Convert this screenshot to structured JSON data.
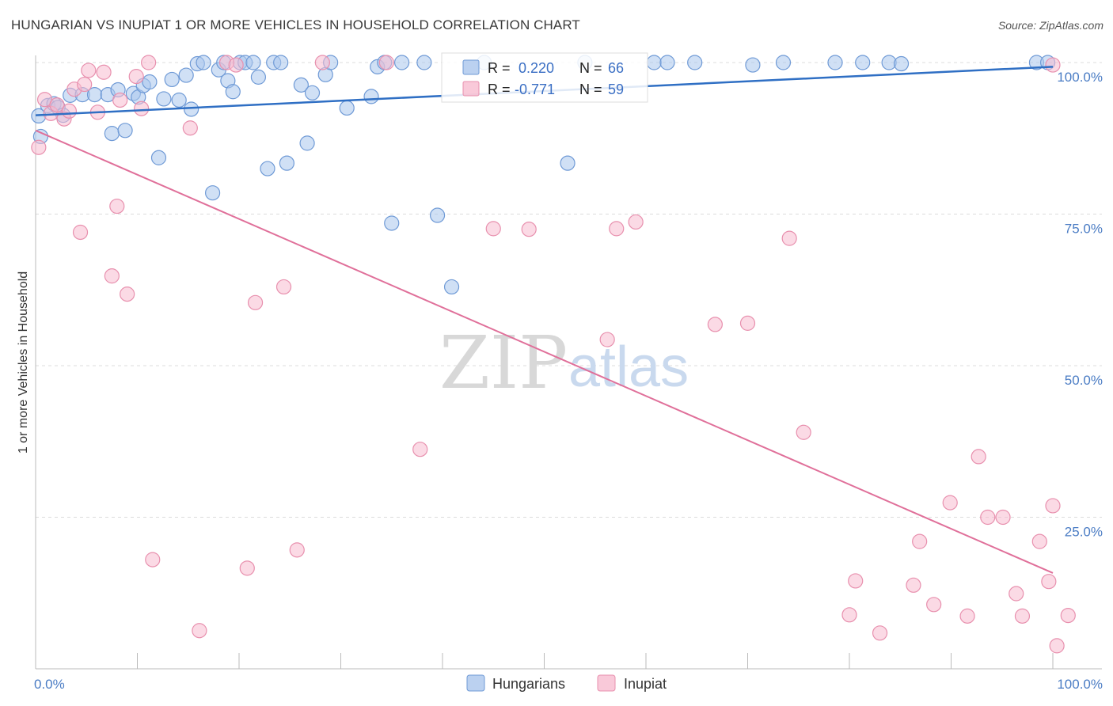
{
  "header": {
    "title": "HUNGARIAN VS INUPIAT 1 OR MORE VEHICLES IN HOUSEHOLD CORRELATION CHART",
    "source": "Source: ZipAtlas.com"
  },
  "watermark": {
    "zip": "ZIP",
    "atlas": "atlas"
  },
  "legend": {
    "r_label": "R =",
    "n_label": "N =",
    "hungarians": {
      "r": "0.220",
      "n": "66"
    },
    "inupiat": {
      "r": "-0.771",
      "n": "59"
    }
  },
  "colors": {
    "hungarians_fill": "#aac6ec",
    "hungarians_stroke": "#6f9ad6",
    "hungarians_line": "#2f6fc4",
    "inupiat_fill": "#f7bcd0",
    "inupiat_stroke": "#e890ae",
    "inupiat_line": "#e0709a"
  },
  "chart_data": {
    "type": "scatter",
    "title": "HUNGARIAN VS INUPIAT 1 OR MORE VEHICLES IN HOUSEHOLD CORRELATION CHART",
    "xlabel": "",
    "ylabel": "1 or more Vehicles in Household",
    "xlim": [
      0,
      100
    ],
    "ylim": [
      0,
      101
    ],
    "x_tick_labels": [
      "0.0%",
      "100.0%"
    ],
    "y_ticks": [
      {
        "value": 100,
        "label": "100.0%"
      },
      {
        "value": 75,
        "label": "75.0%"
      },
      {
        "value": 50,
        "label": "50.0%"
      },
      {
        "value": 25,
        "label": "25.0%"
      }
    ],
    "grid": true,
    "legend_position": "bottom",
    "series": [
      {
        "name": "Hungarians",
        "trend": {
          "x": [
            0,
            100
          ],
          "y": [
            91.3,
            99.3
          ]
        },
        "points": [
          [
            0.3,
            91.2
          ],
          [
            0.5,
            87.8
          ],
          [
            1.2,
            92.9
          ],
          [
            1.8,
            93.2
          ],
          [
            2.2,
            92.6
          ],
          [
            2.7,
            91.3
          ],
          [
            3.4,
            94.6
          ],
          [
            4.6,
            94.7
          ],
          [
            5.8,
            94.7
          ],
          [
            7.1,
            94.7
          ],
          [
            7.5,
            88.3
          ],
          [
            8.1,
            95.5
          ],
          [
            8.8,
            88.8
          ],
          [
            9.6,
            94.9
          ],
          [
            10.1,
            94.3
          ],
          [
            10.6,
            96.2
          ],
          [
            11.2,
            96.8
          ],
          [
            12.1,
            84.3
          ],
          [
            12.6,
            94.0
          ],
          [
            13.4,
            97.2
          ],
          [
            14.1,
            93.8
          ],
          [
            14.8,
            97.9
          ],
          [
            15.3,
            92.3
          ],
          [
            15.9,
            99.8
          ],
          [
            16.5,
            100
          ],
          [
            17.4,
            78.5
          ],
          [
            18.0,
            98.8
          ],
          [
            18.5,
            100
          ],
          [
            18.9,
            97.0
          ],
          [
            19.4,
            95.2
          ],
          [
            20.1,
            100
          ],
          [
            20.6,
            100
          ],
          [
            21.4,
            100
          ],
          [
            21.9,
            97.6
          ],
          [
            22.8,
            82.5
          ],
          [
            23.4,
            100
          ],
          [
            24.1,
            100
          ],
          [
            24.7,
            83.4
          ],
          [
            26.1,
            96.3
          ],
          [
            26.7,
            86.7
          ],
          [
            27.2,
            95.0
          ],
          [
            28.5,
            98.0
          ],
          [
            29.0,
            100
          ],
          [
            30.6,
            92.5
          ],
          [
            33.0,
            94.4
          ],
          [
            33.6,
            99.3
          ],
          [
            34.3,
            100
          ],
          [
            35.0,
            73.5
          ],
          [
            36.0,
            100
          ],
          [
            38.2,
            100
          ],
          [
            39.5,
            74.8
          ],
          [
            40.9,
            63.0
          ],
          [
            44.1,
            100
          ],
          [
            52.3,
            83.4
          ],
          [
            54.0,
            100
          ],
          [
            60.8,
            100
          ],
          [
            62.1,
            100
          ],
          [
            64.8,
            100
          ],
          [
            70.5,
            99.6
          ],
          [
            73.5,
            100
          ],
          [
            78.6,
            100
          ],
          [
            81.3,
            100
          ],
          [
            83.9,
            100
          ],
          [
            85.1,
            99.8
          ],
          [
            98.4,
            100
          ],
          [
            99.5,
            100
          ]
        ]
      },
      {
        "name": "Inupiat",
        "trend": {
          "x": [
            0,
            100
          ],
          "y": [
            88.8,
            15.8
          ]
        },
        "points": [
          [
            0.3,
            86.0
          ],
          [
            0.9,
            93.9
          ],
          [
            1.5,
            91.6
          ],
          [
            2.1,
            93.0
          ],
          [
            2.8,
            90.7
          ],
          [
            3.3,
            92.0
          ],
          [
            3.8,
            95.6
          ],
          [
            4.4,
            72.0
          ],
          [
            4.8,
            96.4
          ],
          [
            5.2,
            98.7
          ],
          [
            6.1,
            91.8
          ],
          [
            6.7,
            98.4
          ],
          [
            7.5,
            64.8
          ],
          [
            8.0,
            76.3
          ],
          [
            8.3,
            93.8
          ],
          [
            9.0,
            61.8
          ],
          [
            9.9,
            97.7
          ],
          [
            10.4,
            92.4
          ],
          [
            11.1,
            100
          ],
          [
            11.5,
            18.0
          ],
          [
            15.2,
            89.2
          ],
          [
            16.1,
            6.3
          ],
          [
            18.8,
            100
          ],
          [
            19.7,
            99.6
          ],
          [
            20.8,
            16.6
          ],
          [
            21.6,
            60.4
          ],
          [
            24.4,
            63.0
          ],
          [
            25.7,
            19.6
          ],
          [
            28.2,
            100
          ],
          [
            34.5,
            100
          ],
          [
            37.8,
            36.2
          ],
          [
            45.0,
            72.6
          ],
          [
            48.5,
            72.5
          ],
          [
            56.2,
            54.3
          ],
          [
            57.1,
            72.6
          ],
          [
            59.0,
            73.7
          ],
          [
            66.8,
            56.8
          ],
          [
            70.0,
            57.0
          ],
          [
            74.1,
            71.0
          ],
          [
            75.5,
            39.0
          ],
          [
            80.0,
            8.9
          ],
          [
            80.6,
            14.5
          ],
          [
            83.0,
            5.9
          ],
          [
            86.3,
            13.8
          ],
          [
            86.9,
            21.0
          ],
          [
            88.3,
            10.6
          ],
          [
            89.9,
            27.4
          ],
          [
            91.6,
            8.7
          ],
          [
            92.7,
            35.0
          ],
          [
            93.6,
            25.0
          ],
          [
            95.1,
            25.0
          ],
          [
            96.4,
            12.4
          ],
          [
            97.0,
            8.7
          ],
          [
            98.7,
            21.0
          ],
          [
            99.6,
            14.4
          ],
          [
            100.0,
            26.9
          ],
          [
            100.4,
            3.8
          ],
          [
            101.5,
            8.8
          ],
          [
            100.0,
            99.6
          ]
        ]
      }
    ]
  },
  "bottom_legend": {
    "hungarians": "Hungarians",
    "inupiat": "Inupiat"
  }
}
